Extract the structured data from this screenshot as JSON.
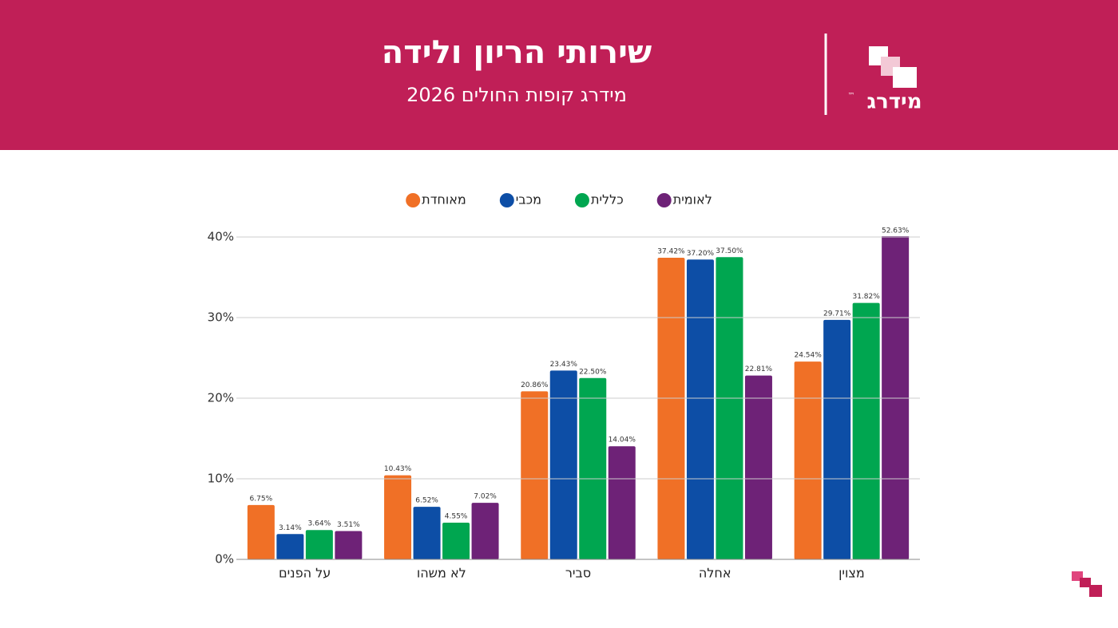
{
  "header": {
    "title": "שירותי הריון ולידה",
    "subtitle": "מידרג קופות החולים 2026",
    "logo": "מידרג",
    "logo_mark": "™"
  },
  "chart_data": {
    "type": "bar",
    "categories": [
      "על הפנים",
      "לא משהו",
      "סביר",
      "אחלה",
      "מצוין"
    ],
    "series": [
      {
        "name": "מאוחדת",
        "color": "#f07026",
        "values": [
          6.75,
          10.43,
          20.86,
          37.42,
          24.54
        ],
        "value_labels": [
          "6.75%",
          "10.43%",
          "20.86%",
          "37.42%",
          "24.54%"
        ]
      },
      {
        "name": "מכבי",
        "color": "#0d4ea6",
        "values": [
          3.14,
          6.52,
          23.43,
          37.2,
          29.71
        ],
        "value_labels": [
          "3.14%",
          "6.52%",
          "23.43%",
          "37.20%",
          "29.71%"
        ]
      },
      {
        "name": "כללית",
        "color": "#00a650",
        "values": [
          3.64,
          4.55,
          22.5,
          37.5,
          31.82
        ],
        "value_labels": [
          "3.64%",
          "4.55%",
          "22.50%",
          "37.50%",
          "31.82%"
        ]
      },
      {
        "name": "לאומית",
        "color": "#6e2277",
        "values": [
          3.51,
          7.02,
          14.04,
          22.81,
          52.63
        ],
        "value_labels": [
          "3.51%",
          "7.02%",
          "14.04%",
          "22.81%",
          "52.63%"
        ]
      }
    ],
    "ylim": [
      0,
      40
    ],
    "yticks": [
      {
        "value": 0,
        "label": "0%"
      },
      {
        "value": 10,
        "label": "10%"
      },
      {
        "value": 20,
        "label": "20%"
      },
      {
        "value": 30,
        "label": "30%"
      },
      {
        "value": 40,
        "label": "40%"
      }
    ],
    "grid": true,
    "legend": "top"
  }
}
